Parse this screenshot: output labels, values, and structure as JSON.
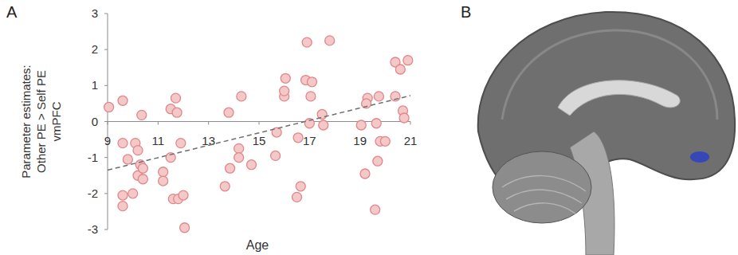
{
  "chart_data": {
    "type": "scatter",
    "panel_labels": [
      "A",
      "B"
    ],
    "x_label": "Age",
    "y_label": [
      "Parameter estimates:",
      "Other PE > Self PE",
      "vmPFC"
    ],
    "x": [
      9.05,
      9.6,
      9.6,
      9.6,
      9.6,
      9.8,
      10.0,
      10.1,
      10.2,
      10.2,
      10.3,
      10.35,
      10.4,
      10.4,
      11.2,
      11.2,
      11.5,
      11.7,
      11.75,
      11.6,
      11.8,
      11.9,
      12.05,
      12.0,
      11.5,
      13.8,
      13.65,
      13.85,
      14.2,
      14.2,
      14.3,
      14.7,
      15.65,
      15.7,
      16.0,
      16.0,
      16.05,
      16.5,
      16.55,
      16.65,
      16.9,
      16.85,
      17.1,
      17.05,
      17.0,
      17.5,
      17.55,
      17.8,
      19.05,
      19.2,
      19.3,
      19.25,
      19.6,
      19.65,
      19.7,
      19.75,
      19.8,
      20.0,
      20.4,
      20.4,
      20.6,
      20.7,
      20.75,
      20.9
    ],
    "values": [
      0.4,
      0.58,
      -0.6,
      -2.05,
      -2.35,
      -1.05,
      -2.0,
      -0.6,
      -0.8,
      -1.5,
      -1.2,
      0.18,
      -1.6,
      -1.3,
      -1.4,
      -1.65,
      0.35,
      0.65,
      0.25,
      -2.15,
      -2.15,
      -0.6,
      -2.95,
      -2.05,
      -1.0,
      0.25,
      -1.8,
      -1.3,
      -0.75,
      -1.0,
      0.7,
      -1.2,
      -0.95,
      -0.3,
      0.7,
      0.85,
      1.2,
      -2.1,
      -0.45,
      -1.8,
      2.2,
      1.15,
      1.1,
      0.7,
      -0.05,
      0.2,
      -0.1,
      2.25,
      -0.1,
      -1.45,
      0.65,
      0.5,
      -2.45,
      -0.05,
      -1.1,
      0.7,
      -0.55,
      -0.55,
      0.7,
      1.65,
      1.45,
      0.3,
      0.1,
      1.7
    ],
    "color": "#f4c8c8",
    "marker": "circle",
    "xlim": [
      9,
      21
    ],
    "ylim": [
      -3,
      3
    ],
    "xticks": [
      9,
      11,
      13,
      15,
      17,
      19,
      21
    ],
    "yticks": [
      -3,
      -2,
      -1,
      0,
      1,
      2,
      3
    ],
    "trend_line": {
      "x": [
        9,
        21
      ],
      "values": [
        -1.35,
        0.72
      ],
      "line_style": "dashed"
    }
  }
}
